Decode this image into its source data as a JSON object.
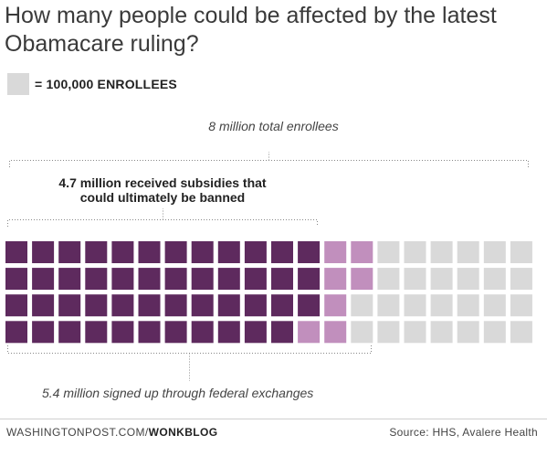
{
  "title": "How many people could be affected by the latest Obamacare ruling?",
  "legend": {
    "label": "= 100,000 ENROLLEES",
    "swatch_color": "#d9d9d9"
  },
  "annotations": {
    "total": "8 million total enrollees",
    "subsidies_line1": "4.7 million received subsidies that",
    "subsidies_line2": "could ultimately be banned",
    "federal": "5.4 million signed up through federal exchanges"
  },
  "footer": {
    "site": "WASHINGTONPOST.COM/",
    "section": "WONKBLOG",
    "source": "Source: HHS, Avalere Health"
  },
  "colors": {
    "subsidies": "#5e2a5e",
    "federal_only": "#c18fbd",
    "other": "#d9d9d9",
    "bracket": "#888888"
  },
  "chart_data": {
    "type": "waffle",
    "unit": 100000,
    "title": "How many people could be affected by the latest Obamacare ruling?",
    "series": [
      {
        "name": "4.7 million received subsidies that could ultimately be banned",
        "value": 4700000,
        "squares": 47
      },
      {
        "name": "5.4 million signed up through federal exchanges",
        "value": 5400000,
        "squares": 54
      },
      {
        "name": "8 million total enrollees",
        "value": 8000000,
        "squares": 80
      }
    ]
  }
}
